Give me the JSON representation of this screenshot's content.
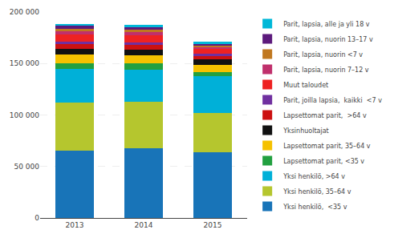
{
  "chart_data": {
    "type": "bar",
    "stacked": true,
    "categories": [
      "2013",
      "2014",
      "2015"
    ],
    "series": [
      {
        "name": "Yksi henkilö,  <35 v",
        "color": "#1874b8",
        "values": [
          65000,
          68000,
          64000
        ]
      },
      {
        "name": "Yksi henkilö, 35–64 v",
        "color": "#b5c62e",
        "values": [
          47000,
          45000,
          38000
        ]
      },
      {
        "name": "Yksi henkilö, >64 v",
        "color": "#00b0d8",
        "values": [
          33000,
          31000,
          36000
        ]
      },
      {
        "name": "Lapsettomat parit, <35 v",
        "color": "#22a040",
        "values": [
          5500,
          6000,
          4000
        ]
      },
      {
        "name": "Lapsettomat parit, 35–64 v",
        "color": "#f5c100",
        "values": [
          8500,
          8000,
          7000
        ]
      },
      {
        "name": "Yksinhuoltajat",
        "color": "#111111",
        "values": [
          5500,
          5500,
          5000
        ]
      },
      {
        "name": "Lapsettomat parit,  >64 v",
        "color": "#cc1111",
        "values": [
          4500,
          4500,
          3500
        ]
      },
      {
        "name": "Parit, joilla lapsia,  kaikki  <7 v",
        "color": "#7030a0",
        "values": [
          2500,
          2500,
          2000
        ]
      },
      {
        "name": "Muut taloudet",
        "color": "#ee2222",
        "values": [
          7000,
          7000,
          4500
        ]
      },
      {
        "name": "Parit, lapsia, nuorin 7–12 v",
        "color": "#c0306c",
        "values": [
          3500,
          3500,
          2500
        ]
      },
      {
        "name": "Parit, lapsia, nuorin <7 v",
        "color": "#c07820",
        "values": [
          1500,
          1500,
          1000
        ]
      },
      {
        "name": "Parit, lapsia, nuorin 13–17 v",
        "color": "#5c1a7c",
        "values": [
          3000,
          3000,
          2000
        ]
      },
      {
        "name": "Parit, lapsia, alle ja yli 18 v",
        "color": "#00b8d8",
        "values": [
          2000,
          2000,
          1500
        ]
      }
    ],
    "ylim": [
      0,
      200000
    ],
    "yticks": [
      0,
      {
        "value": 50000,
        "label": "50 000"
      },
      {
        "value": 100000,
        "label": "100 000"
      },
      {
        "value": 150000,
        "label": "150 000"
      },
      {
        "value": 200000,
        "label": "200 000"
      }
    ],
    "grid": true,
    "legend": "right"
  }
}
